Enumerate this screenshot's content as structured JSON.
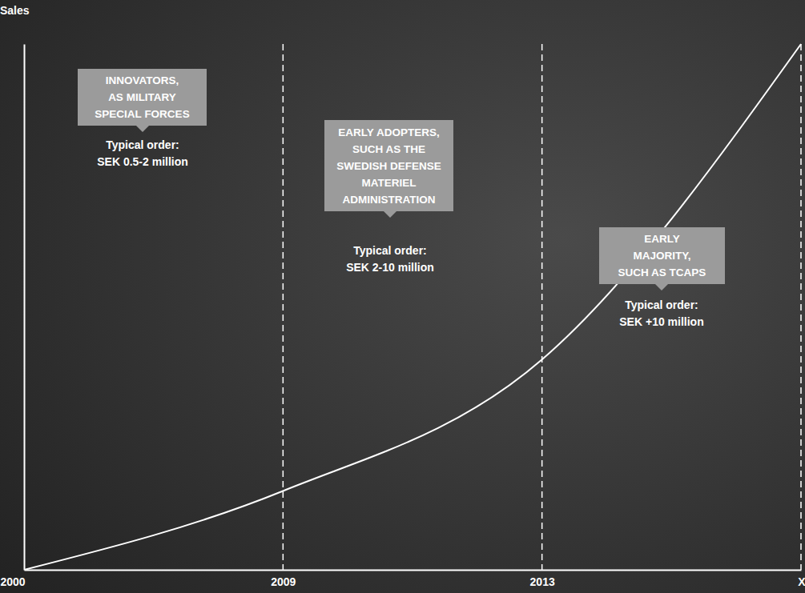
{
  "chart_data": {
    "type": "line",
    "y_label": "Sales",
    "categories": [
      "2000",
      "2009",
      "2013",
      "X"
    ],
    "values": [
      0,
      15,
      40,
      100
    ],
    "color": "#ffffff",
    "ylim": [
      0,
      100
    ],
    "grid": true,
    "tick_labels": "x",
    "annotations": [
      {
        "lines": [
          "INNOVATORS,",
          "AS MILITARY",
          "SPECIAL FORCES"
        ],
        "order_lines": [
          "Typical order:",
          "SEK 0.5-2 million"
        ]
      },
      {
        "lines": [
          "EARLY ADOPTERS,",
          "SUCH AS THE",
          "SWEDISH DEFENSE",
          "MATERIEL",
          "ADMINISTRATION"
        ],
        "order_lines": [
          "Typical order:",
          "SEK 2-10 million"
        ]
      },
      {
        "lines": [
          "EARLY",
          "MAJORITY,",
          "SUCH AS TCAPS"
        ],
        "order_lines": [
          "Typical order:",
          "SEK +10 million"
        ]
      }
    ]
  }
}
